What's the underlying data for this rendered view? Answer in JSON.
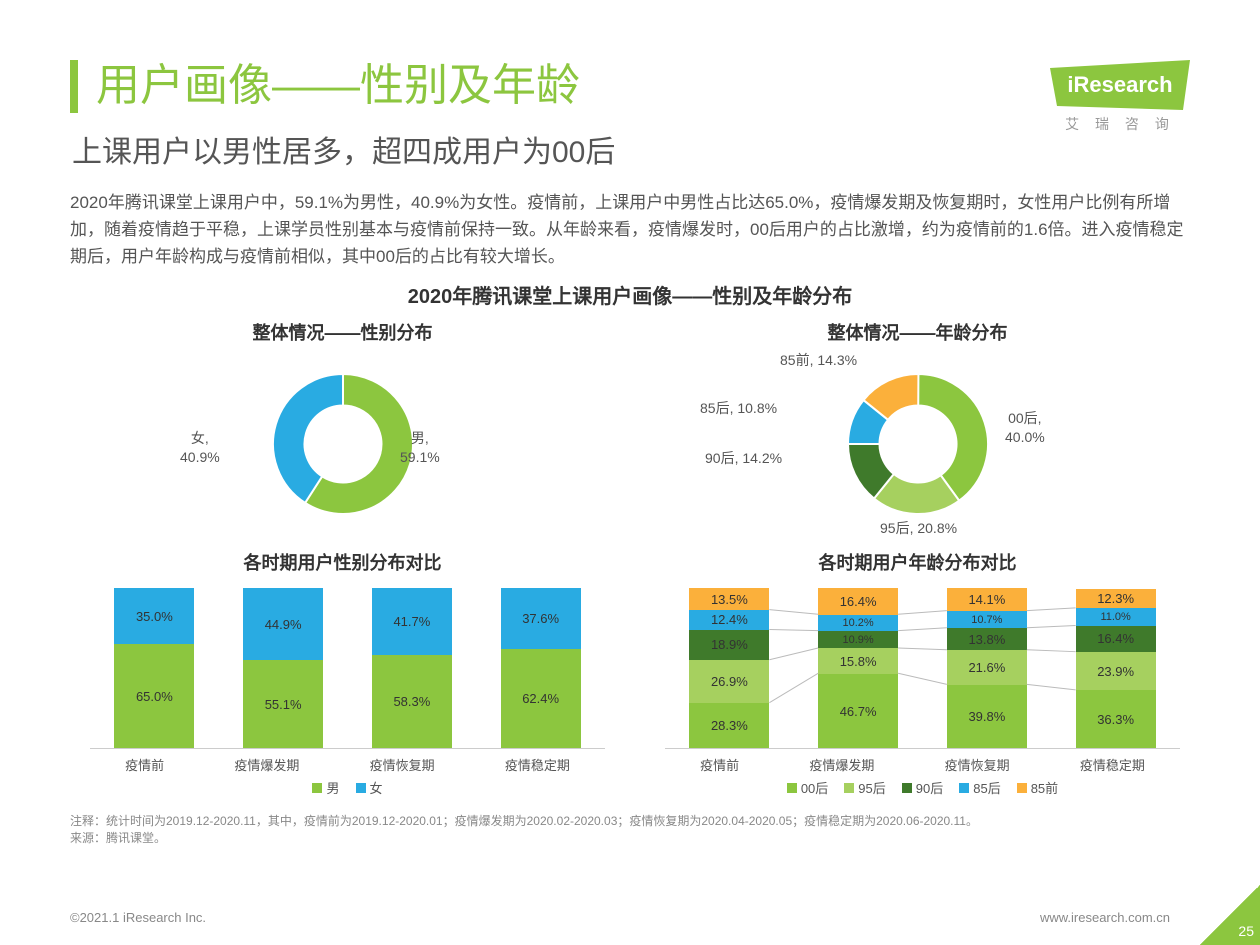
{
  "logo": {
    "brand": "iResearch",
    "sub": "艾 瑞 咨 询"
  },
  "title_main": "用户画像——性别及年龄",
  "title_sub": "上课用户以男性居多，超四成用户为00后",
  "body_text": "2020年腾讯课堂上课用户中，59.1%为男性，40.9%为女性。疫情前，上课用户中男性占比达65.0%，疫情爆发期及恢复期时，女性用户比例有所增加，随着疫情趋于平稳，上课学员性别基本与疫情前保持一致。从年龄来看，疫情爆发时，00后用户的占比激增，约为疫情前的1.6倍。进入疫情稳定期后，用户年龄构成与疫情前相似，其中00后的占比有较大增长。",
  "chart_maintitle": "2020年腾讯课堂上课用户画像——性别及年龄分布",
  "colors": {
    "green": "#8cc63f",
    "green2": "#a6d05f",
    "green3": "#66a13a",
    "darkgreen": "#3f7a2b",
    "blue": "#29abe2",
    "yellow": "#fbb03b",
    "bg": "#ffffff",
    "grid": "#e0e0e0"
  },
  "gender_donut": {
    "title": "整体情况——性别分布",
    "type": "donut",
    "inner_ratio": 0.55,
    "slices": [
      {
        "label": "男",
        "value": 59.1,
        "color": "#8cc63f",
        "text": "男,\n59.1%"
      },
      {
        "label": "女",
        "value": 40.9,
        "color": "#29abe2",
        "text": "女,\n40.9%"
      }
    ]
  },
  "age_donut": {
    "title": "整体情况——年龄分布",
    "type": "donut",
    "inner_ratio": 0.55,
    "slices": [
      {
        "label": "00后",
        "value": 40.0,
        "color": "#8cc63f",
        "text": "00后,\n40.0%"
      },
      {
        "label": "95后",
        "value": 20.8,
        "color": "#a6d05f",
        "text": "95后, 20.8%"
      },
      {
        "label": "90后",
        "value": 14.2,
        "color": "#3f7a2b",
        "text": "90后, 14.2%"
      },
      {
        "label": "85后",
        "value": 10.8,
        "color": "#29abe2",
        "text": "85后, 10.8%"
      },
      {
        "label": "85前",
        "value": 14.3,
        "color": "#fbb03b",
        "text": "85前, 14.3%"
      }
    ]
  },
  "gender_stack": {
    "title": "各时期用户性别分布对比",
    "type": "stacked-bar",
    "categories": [
      "疫情前",
      "疫情爆发期",
      "疫情恢复期",
      "疫情稳定期"
    ],
    "series": [
      {
        "name": "男",
        "color": "#8cc63f",
        "values": [
          65.0,
          55.1,
          58.3,
          62.4
        ]
      },
      {
        "name": "女",
        "color": "#29abe2",
        "values": [
          35.0,
          44.9,
          41.7,
          37.6
        ]
      }
    ],
    "ylim": [
      0,
      100
    ]
  },
  "age_stack": {
    "title": "各时期用户年龄分布对比",
    "type": "stacked-bar-100",
    "categories": [
      "疫情前",
      "疫情爆发期",
      "疫情恢复期",
      "疫情稳定期"
    ],
    "series": [
      {
        "name": "00后",
        "color": "#8cc63f",
        "values": [
          28.3,
          46.7,
          39.8,
          36.3
        ]
      },
      {
        "name": "95后",
        "color": "#a6d05f",
        "values": [
          26.9,
          15.8,
          21.6,
          23.9
        ]
      },
      {
        "name": "90后",
        "color": "#3f7a2b",
        "values": [
          18.9,
          10.9,
          13.8,
          16.4
        ]
      },
      {
        "name": "85后",
        "color": "#29abe2",
        "values": [
          12.4,
          10.2,
          10.7,
          11.0
        ]
      },
      {
        "name": "85前",
        "color": "#fbb03b",
        "values": [
          13.5,
          16.4,
          14.1,
          12.3
        ]
      }
    ],
    "ylim": [
      0,
      100
    ],
    "connectors": true
  },
  "footnote_l1": "注释：统计时间为2019.12-2020.11，其中，疫情前为2019.12-2020.01；疫情爆发期为2020.02-2020.03；疫情恢复期为2020.04-2020.05；疫情稳定期为2020.06-2020.11。",
  "footnote_l2": "来源：腾讯课堂。",
  "footer_left": "©2021.1 iResearch Inc.",
  "footer_right": "www.iresearch.com.cn",
  "page_number": "25"
}
